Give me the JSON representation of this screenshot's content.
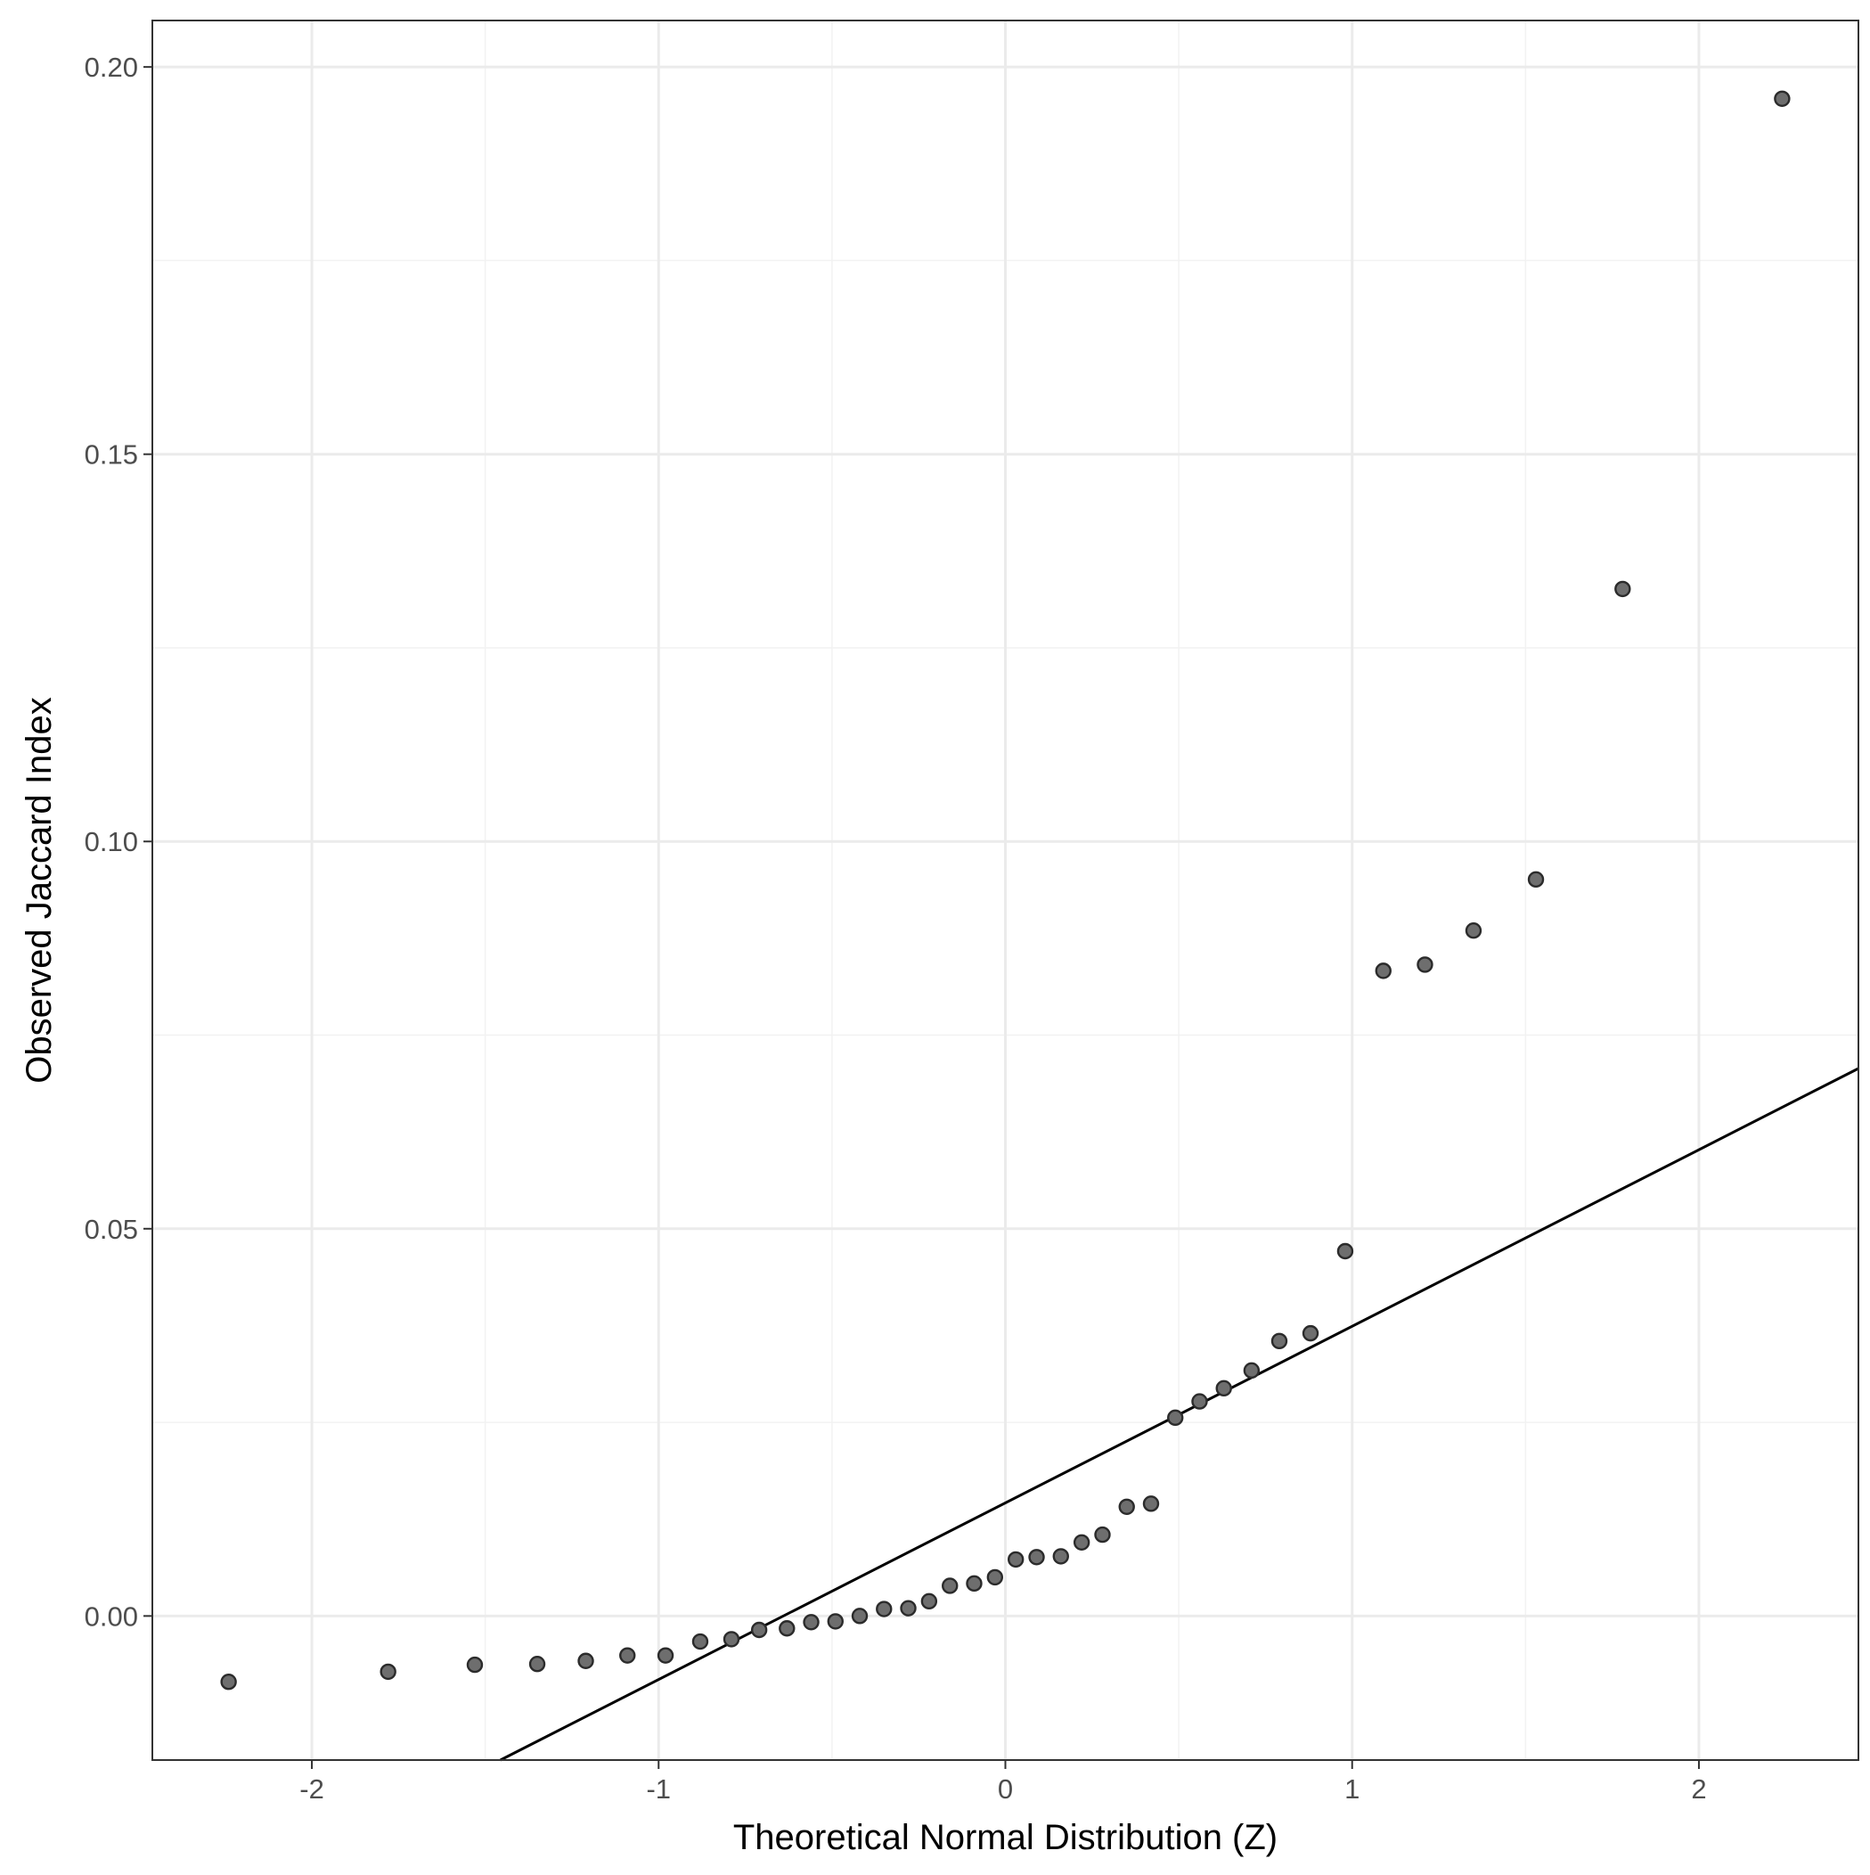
{
  "chart_data": {
    "type": "scatter",
    "title": "",
    "xlabel": "Theoretical Normal Distribution (Z)",
    "ylabel": "Observed Jaccard Index",
    "xlim": [
      -2.46,
      2.46
    ],
    "ylim": [
      -0.0186,
      0.206
    ],
    "x_ticks": [
      -2,
      -1,
      0,
      1,
      2
    ],
    "x_tick_labels": [
      "-2",
      "-1",
      "0",
      "1",
      "2"
    ],
    "y_ticks": [
      0.0,
      0.05,
      0.1,
      0.15,
      0.2
    ],
    "y_tick_labels": [
      "0.00",
      "0.05",
      "0.10",
      "0.15",
      "0.20"
    ],
    "x_minor": [
      -1.5,
      -0.5,
      0.5,
      1.5
    ],
    "y_minor": [
      0.025,
      0.075,
      0.125,
      0.175
    ],
    "grid": true,
    "legend": "none",
    "point_color": "#6e6e6e",
    "line_color": "#000000",
    "reference_line": {
      "intercept": 0.0146,
      "slope": 0.0228
    },
    "points": {
      "x": [
        -2.24,
        -1.78,
        -1.53,
        -1.35,
        -1.21,
        -1.09,
        -0.98,
        -0.88,
        -0.79,
        -0.71,
        -0.63,
        -0.56,
        -0.49,
        -0.42,
        -0.35,
        -0.28,
        -0.22,
        -0.16,
        -0.09,
        -0.03,
        0.03,
        0.09,
        0.16,
        0.22,
        0.28,
        0.35,
        0.42,
        0.49,
        0.56,
        0.63,
        0.71,
        0.79,
        0.88,
        0.98,
        1.09,
        1.21,
        1.35,
        1.53,
        1.78,
        2.24
      ],
      "y": [
        -0.0085,
        -0.0072,
        -0.0063,
        -0.0062,
        -0.0058,
        -0.0051,
        -0.0051,
        -0.0033,
        -0.003,
        -0.0018,
        -0.0016,
        -0.0008,
        -0.0007,
        0.0,
        0.0009,
        0.001,
        0.0019,
        0.0039,
        0.0042,
        0.005,
        0.0073,
        0.0076,
        0.0077,
        0.0095,
        0.0105,
        0.0141,
        0.0145,
        0.0256,
        0.0277,
        0.0294,
        0.0317,
        0.0355,
        0.0365,
        0.0471,
        0.0833,
        0.0841,
        0.0885,
        0.0951,
        0.1326,
        0.1959
      ]
    }
  }
}
